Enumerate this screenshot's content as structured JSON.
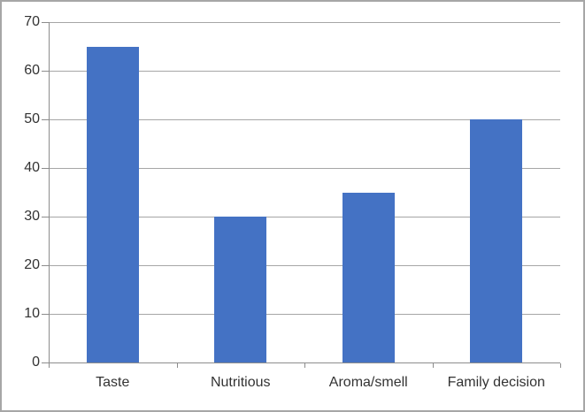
{
  "chart_data": {
    "type": "bar",
    "title": "",
    "xlabel": "",
    "ylabel": "",
    "categories": [
      "Taste",
      "Nutritious",
      "Aroma/smell",
      "Family decision"
    ],
    "values": [
      65,
      30,
      35,
      50
    ],
    "ylim": [
      0,
      70
    ],
    "ytick_step": 10,
    "ytick_labels": [
      "0",
      "10",
      "20",
      "30",
      "40",
      "50",
      "60",
      "70"
    ],
    "grid": true,
    "legend_position": "none",
    "colors": {
      "bar": "#4472C4",
      "gridline": "#a6a6a6",
      "axis": "#8c8c8c",
      "text": "#333333",
      "frame_border": "#a6a6a6",
      "background": "#ffffff"
    }
  }
}
